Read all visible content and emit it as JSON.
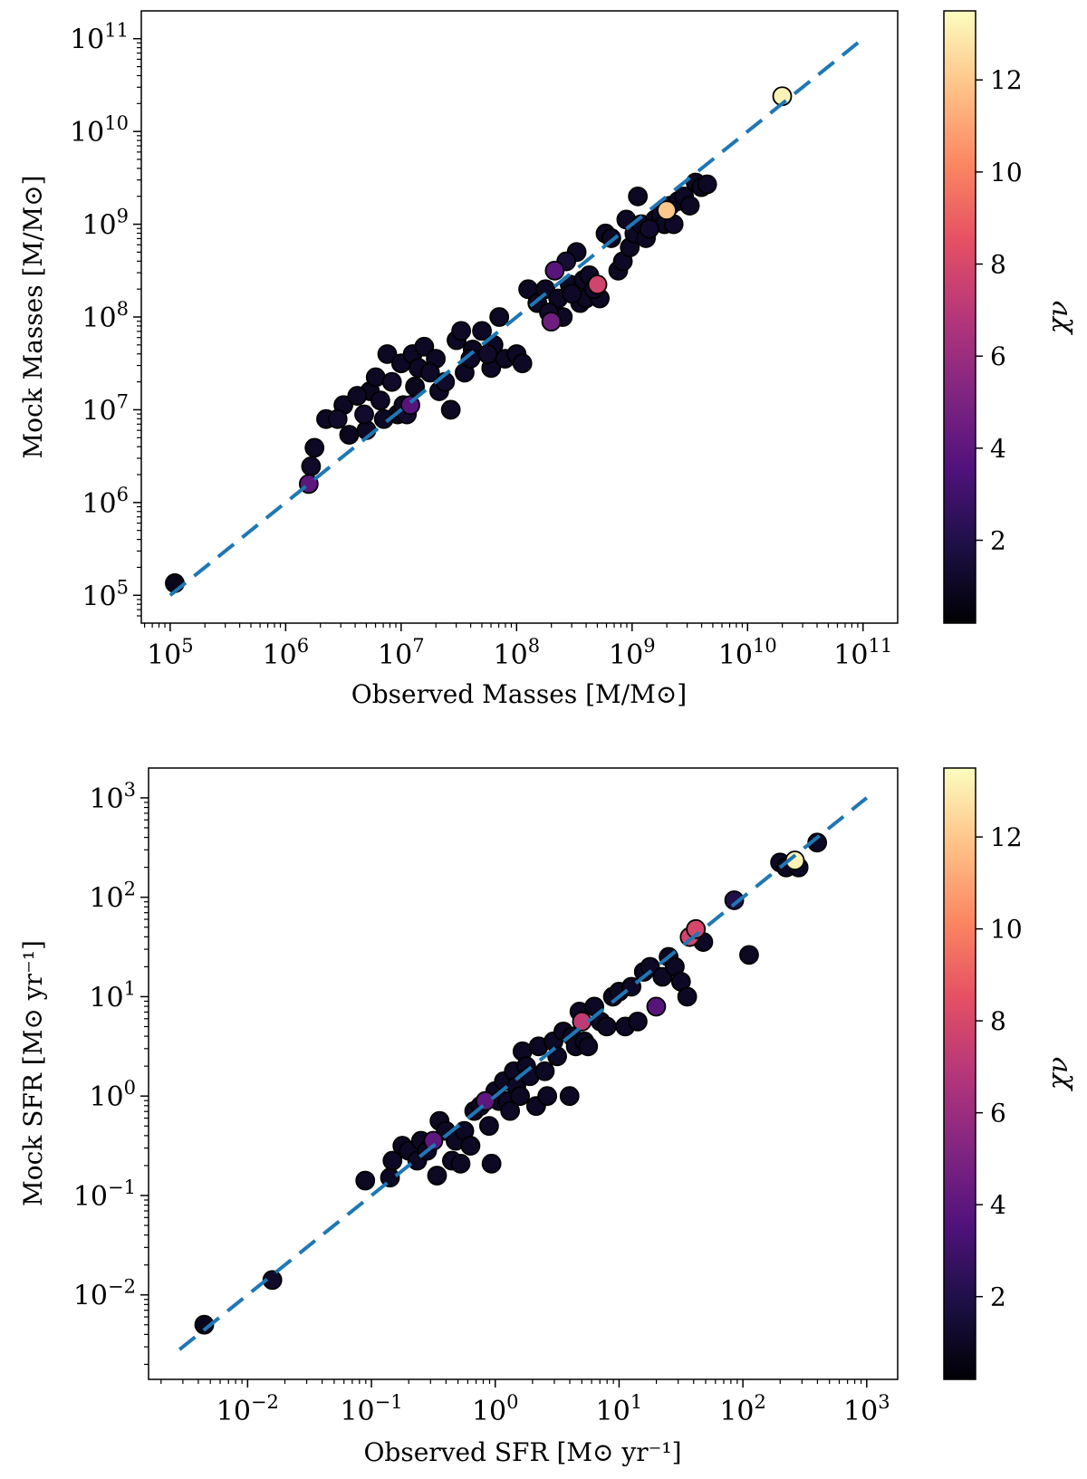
{
  "colorbar": {
    "label": "χν",
    "min": 0.2,
    "max": 13.5,
    "ticks": [
      2,
      4,
      6,
      8,
      10,
      12
    ],
    "colors": [
      "#000004",
      "#1c1044",
      "#4f127b",
      "#812581",
      "#b5367a",
      "#e55064",
      "#fb8761",
      "#fec287",
      "#fcfdbf"
    ]
  },
  "chart_data": [
    {
      "type": "scatter",
      "name": "masses",
      "xlabel": "Observed Masses [M/M⊙]",
      "ylabel": "Mock Masses [M/M⊙]",
      "xscale": "log",
      "yscale": "log",
      "xlim_exp": [
        4.75,
        11.3
      ],
      "ylim_exp": [
        4.7,
        11.3
      ],
      "xticks": [
        {
          "base": "10",
          "exp": "5"
        },
        {
          "base": "10",
          "exp": "6"
        },
        {
          "base": "10",
          "exp": "7"
        },
        {
          "base": "10",
          "exp": "8"
        },
        {
          "base": "10",
          "exp": "9"
        },
        {
          "base": "10",
          "exp": "10"
        },
        {
          "base": "10",
          "exp": "11"
        }
      ],
      "yticks": [
        {
          "base": "10",
          "exp": "5"
        },
        {
          "base": "10",
          "exp": "6"
        },
        {
          "base": "10",
          "exp": "7"
        },
        {
          "base": "10",
          "exp": "8"
        },
        {
          "base": "10",
          "exp": "9"
        },
        {
          "base": "10",
          "exp": "10"
        },
        {
          "base": "10",
          "exp": "11"
        }
      ],
      "line": {
        "x_exp": [
          5.0,
          11.0
        ],
        "y_exp": [
          5.0,
          11.0
        ],
        "color": "#1f77b4"
      },
      "points": [
        [
          5.04,
          5.13,
          0.8
        ],
        [
          6.2,
          6.2,
          4.0
        ],
        [
          6.22,
          6.39,
          1.2
        ],
        [
          6.25,
          6.59,
          1.0
        ],
        [
          6.35,
          6.9,
          1.0
        ],
        [
          6.45,
          6.9,
          1.2
        ],
        [
          6.5,
          7.05,
          1.0
        ],
        [
          6.55,
          6.73,
          0.9
        ],
        [
          6.62,
          7.15,
          1.0
        ],
        [
          6.68,
          6.95,
          1.3
        ],
        [
          6.7,
          6.78,
          1.0
        ],
        [
          6.73,
          7.2,
          0.9
        ],
        [
          6.78,
          7.35,
          1.0
        ],
        [
          6.82,
          7.1,
          1.1
        ],
        [
          6.85,
          6.9,
          1.0
        ],
        [
          6.88,
          7.6,
          1.0
        ],
        [
          6.92,
          7.3,
          1.2
        ],
        [
          6.97,
          6.95,
          0.8
        ],
        [
          7.0,
          7.5,
          1.0
        ],
        [
          7.02,
          7.05,
          1.1
        ],
        [
          7.05,
          6.95,
          1.3
        ],
        [
          7.08,
          7.05,
          3.8
        ],
        [
          7.1,
          7.6,
          1.0
        ],
        [
          7.12,
          7.25,
          0.9
        ],
        [
          7.15,
          7.45,
          1.0
        ],
        [
          7.2,
          7.68,
          1.0
        ],
        [
          7.25,
          7.4,
          1.1
        ],
        [
          7.3,
          7.55,
          1.0
        ],
        [
          7.33,
          7.2,
          1.0
        ],
        [
          7.38,
          7.3,
          1.2
        ],
        [
          7.43,
          7.0,
          1.0
        ],
        [
          7.48,
          7.75,
          1.0
        ],
        [
          7.52,
          7.85,
          1.1
        ],
        [
          7.55,
          7.4,
          1.0
        ],
        [
          7.6,
          7.55,
          1.0
        ],
        [
          7.62,
          7.65,
          0.9
        ],
        [
          7.7,
          7.85,
          1.0
        ],
        [
          7.75,
          7.6,
          1.2
        ],
        [
          7.78,
          7.45,
          1.0
        ],
        [
          7.8,
          7.7,
          1.0
        ],
        [
          7.85,
          8.0,
          1.0
        ],
        [
          7.9,
          7.55,
          1.0
        ],
        [
          8.0,
          7.6,
          1.0
        ],
        [
          8.05,
          7.5,
          1.0
        ],
        [
          8.1,
          8.3,
          1.0
        ],
        [
          8.18,
          8.15,
          1.0
        ],
        [
          8.25,
          8.3,
          1.0
        ],
        [
          8.28,
          8.05,
          1.2
        ],
        [
          8.3,
          7.95,
          4.6
        ],
        [
          8.33,
          8.5,
          3.8
        ],
        [
          8.36,
          8.2,
          1.0
        ],
        [
          8.4,
          8.0,
          1.0
        ],
        [
          8.43,
          8.6,
          1.5
        ],
        [
          8.46,
          8.35,
          1.0
        ],
        [
          8.48,
          8.25,
          1.1
        ],
        [
          8.52,
          8.7,
          1.0
        ],
        [
          8.55,
          8.15,
          1.0
        ],
        [
          8.58,
          8.4,
          1.0
        ],
        [
          8.6,
          8.2,
          1.0
        ],
        [
          8.63,
          8.45,
          1.0
        ],
        [
          8.67,
          8.3,
          1.2
        ],
        [
          8.7,
          8.35,
          7.8
        ],
        [
          8.72,
          8.2,
          1.0
        ],
        [
          8.77,
          8.9,
          1.0
        ],
        [
          8.82,
          8.85,
          1.0
        ],
        [
          8.88,
          8.5,
          1.0
        ],
        [
          8.92,
          8.6,
          1.0
        ],
        [
          8.95,
          9.05,
          1.0
        ],
        [
          8.98,
          8.75,
          1.0
        ],
        [
          9.02,
          8.9,
          1.0
        ],
        [
          9.05,
          9.3,
          1.0
        ],
        [
          9.08,
          9.0,
          1.0
        ],
        [
          9.12,
          8.85,
          1.0
        ],
        [
          9.15,
          8.95,
          1.2
        ],
        [
          9.2,
          9.05,
          1.0
        ],
        [
          9.25,
          9.1,
          1.0
        ],
        [
          9.28,
          9.0,
          1.0
        ],
        [
          9.3,
          9.15,
          12.0
        ],
        [
          9.33,
          9.2,
          1.0
        ],
        [
          9.36,
          9.0,
          1.1
        ],
        [
          9.4,
          9.25,
          1.0
        ],
        [
          9.45,
          9.3,
          1.0
        ],
        [
          9.5,
          9.2,
          1.0
        ],
        [
          9.55,
          9.45,
          1.0
        ],
        [
          9.6,
          9.4,
          1.0
        ],
        [
          9.65,
          9.43,
          1.0
        ],
        [
          10.3,
          10.38,
          13.2
        ]
      ]
    },
    {
      "type": "scatter",
      "name": "sfr",
      "xlabel": "Observed SFR [M⊙ yr⁻¹]",
      "ylabel": "Mock SFR [M⊙ yr⁻¹]",
      "xscale": "log",
      "yscale": "log",
      "xlim_exp": [
        -2.8,
        3.25
      ],
      "ylim_exp": [
        -2.85,
        3.3
      ],
      "xticks": [
        {
          "base": "10",
          "exp": "−2"
        },
        {
          "base": "10",
          "exp": "−1"
        },
        {
          "base": "10",
          "exp": "0"
        },
        {
          "base": "10",
          "exp": "1"
        },
        {
          "base": "10",
          "exp": "2"
        },
        {
          "base": "10",
          "exp": "3"
        }
      ],
      "yticks": [
        {
          "base": "10",
          "exp": "−2"
        },
        {
          "base": "10",
          "exp": "−1"
        },
        {
          "base": "10",
          "exp": "0"
        },
        {
          "base": "10",
          "exp": "1"
        },
        {
          "base": "10",
          "exp": "2"
        },
        {
          "base": "10",
          "exp": "3"
        }
      ],
      "line": {
        "x_exp": [
          -2.55,
          3.0
        ],
        "y_exp": [
          -2.55,
          3.0
        ],
        "color": "#1f77b4"
      },
      "points": [
        [
          -2.35,
          -2.3,
          0.8
        ],
        [
          -1.8,
          -1.85,
          1.2
        ],
        [
          -1.05,
          -0.85,
          1.0
        ],
        [
          -0.85,
          -0.82,
          1.0
        ],
        [
          -0.83,
          -0.65,
          1.0
        ],
        [
          -0.75,
          -0.5,
          1.0
        ],
        [
          -0.7,
          -0.55,
          1.0
        ],
        [
          -0.63,
          -0.65,
          1.0
        ],
        [
          -0.6,
          -0.45,
          1.0
        ],
        [
          -0.55,
          -0.55,
          1.0
        ],
        [
          -0.5,
          -0.45,
          4.0
        ],
        [
          -0.47,
          -0.8,
          1.0
        ],
        [
          -0.45,
          -0.25,
          1.0
        ],
        [
          -0.4,
          -0.35,
          1.0
        ],
        [
          -0.35,
          -0.65,
          1.0
        ],
        [
          -0.32,
          -0.45,
          1.0
        ],
        [
          -0.28,
          -0.68,
          1.0
        ],
        [
          -0.25,
          -0.35,
          1.0
        ],
        [
          -0.2,
          -0.5,
          1.0
        ],
        [
          -0.17,
          -0.15,
          1.0
        ],
        [
          -0.12,
          -0.1,
          1.0
        ],
        [
          -0.08,
          -0.05,
          4.0
        ],
        [
          -0.05,
          -0.3,
          1.0
        ],
        [
          -0.03,
          -0.68,
          1.0
        ],
        [
          0.0,
          0.05,
          1.0
        ],
        [
          0.03,
          -0.05,
          1.0
        ],
        [
          0.07,
          0.15,
          1.0
        ],
        [
          0.1,
          -0.05,
          1.0
        ],
        [
          0.12,
          -0.15,
          1.0
        ],
        [
          0.15,
          0.25,
          1.0
        ],
        [
          0.17,
          0.1,
          1.0
        ],
        [
          0.2,
          0.0,
          1.0
        ],
        [
          0.22,
          0.45,
          1.0
        ],
        [
          0.25,
          0.3,
          1.0
        ],
        [
          0.28,
          0.2,
          1.0
        ],
        [
          0.33,
          -0.1,
          1.0
        ],
        [
          0.35,
          0.5,
          1.0
        ],
        [
          0.4,
          0.25,
          1.0
        ],
        [
          0.42,
          0.0,
          1.0
        ],
        [
          0.47,
          0.55,
          1.0
        ],
        [
          0.5,
          0.4,
          1.0
        ],
        [
          0.55,
          0.65,
          1.0
        ],
        [
          0.6,
          0.0,
          1.0
        ],
        [
          0.62,
          0.6,
          1.0
        ],
        [
          0.65,
          0.5,
          1.0
        ],
        [
          0.68,
          0.85,
          1.0
        ],
        [
          0.7,
          0.75,
          7.2
        ],
        [
          0.72,
          0.55,
          1.0
        ],
        [
          0.75,
          0.5,
          1.0
        ],
        [
          0.8,
          0.9,
          1.0
        ],
        [
          0.85,
          0.75,
          1.0
        ],
        [
          0.9,
          0.7,
          1.0
        ],
        [
          0.95,
          1.0,
          1.0
        ],
        [
          1.0,
          1.05,
          1.0
        ],
        [
          1.05,
          0.7,
          1.0
        ],
        [
          1.1,
          1.1,
          1.0
        ],
        [
          1.15,
          0.75,
          1.0
        ],
        [
          1.2,
          1.25,
          1.0
        ],
        [
          1.25,
          1.3,
          1.0
        ],
        [
          1.3,
          0.9,
          3.8
        ],
        [
          1.35,
          1.2,
          1.0
        ],
        [
          1.4,
          1.4,
          1.0
        ],
        [
          1.45,
          1.3,
          1.0
        ],
        [
          1.5,
          1.15,
          1.0
        ],
        [
          1.55,
          1.0,
          1.0
        ],
        [
          1.57,
          1.6,
          7.8
        ],
        [
          1.62,
          1.68,
          8.0
        ],
        [
          1.68,
          1.55,
          1.0
        ],
        [
          1.93,
          1.97,
          2.0
        ],
        [
          2.05,
          1.42,
          1.0
        ],
        [
          2.3,
          2.35,
          1.0
        ],
        [
          2.35,
          2.3,
          1.0
        ],
        [
          2.42,
          2.37,
          13.2
        ],
        [
          2.45,
          2.3,
          1.0
        ],
        [
          2.6,
          2.55,
          1.0
        ]
      ]
    }
  ]
}
